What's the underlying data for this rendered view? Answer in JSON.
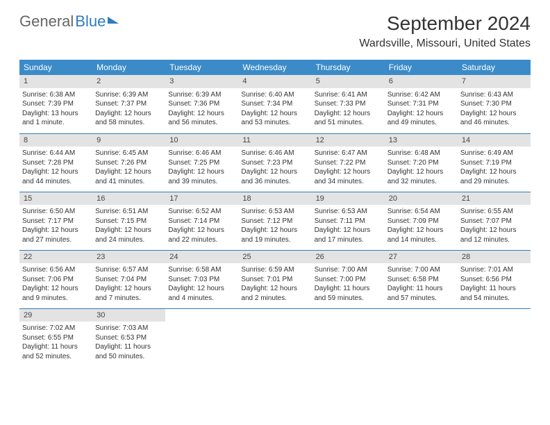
{
  "logo": {
    "part1": "General",
    "part2": "Blue"
  },
  "title": "September 2024",
  "location": "Wardsville, Missouri, United States",
  "header_bg": "#3b8bc8",
  "border_color": "#2f7bbf",
  "daynum_bg": "#e3e3e3",
  "weekdays": [
    "Sunday",
    "Monday",
    "Tuesday",
    "Wednesday",
    "Thursday",
    "Friday",
    "Saturday"
  ],
  "weeks": [
    [
      {
        "n": "1",
        "sr": "Sunrise: 6:38 AM",
        "ss": "Sunset: 7:39 PM",
        "d1": "Daylight: 13 hours",
        "d2": "and 1 minute."
      },
      {
        "n": "2",
        "sr": "Sunrise: 6:39 AM",
        "ss": "Sunset: 7:37 PM",
        "d1": "Daylight: 12 hours",
        "d2": "and 58 minutes."
      },
      {
        "n": "3",
        "sr": "Sunrise: 6:39 AM",
        "ss": "Sunset: 7:36 PM",
        "d1": "Daylight: 12 hours",
        "d2": "and 56 minutes."
      },
      {
        "n": "4",
        "sr": "Sunrise: 6:40 AM",
        "ss": "Sunset: 7:34 PM",
        "d1": "Daylight: 12 hours",
        "d2": "and 53 minutes."
      },
      {
        "n": "5",
        "sr": "Sunrise: 6:41 AM",
        "ss": "Sunset: 7:33 PM",
        "d1": "Daylight: 12 hours",
        "d2": "and 51 minutes."
      },
      {
        "n": "6",
        "sr": "Sunrise: 6:42 AM",
        "ss": "Sunset: 7:31 PM",
        "d1": "Daylight: 12 hours",
        "d2": "and 49 minutes."
      },
      {
        "n": "7",
        "sr": "Sunrise: 6:43 AM",
        "ss": "Sunset: 7:30 PM",
        "d1": "Daylight: 12 hours",
        "d2": "and 46 minutes."
      }
    ],
    [
      {
        "n": "8",
        "sr": "Sunrise: 6:44 AM",
        "ss": "Sunset: 7:28 PM",
        "d1": "Daylight: 12 hours",
        "d2": "and 44 minutes."
      },
      {
        "n": "9",
        "sr": "Sunrise: 6:45 AM",
        "ss": "Sunset: 7:26 PM",
        "d1": "Daylight: 12 hours",
        "d2": "and 41 minutes."
      },
      {
        "n": "10",
        "sr": "Sunrise: 6:46 AM",
        "ss": "Sunset: 7:25 PM",
        "d1": "Daylight: 12 hours",
        "d2": "and 39 minutes."
      },
      {
        "n": "11",
        "sr": "Sunrise: 6:46 AM",
        "ss": "Sunset: 7:23 PM",
        "d1": "Daylight: 12 hours",
        "d2": "and 36 minutes."
      },
      {
        "n": "12",
        "sr": "Sunrise: 6:47 AM",
        "ss": "Sunset: 7:22 PM",
        "d1": "Daylight: 12 hours",
        "d2": "and 34 minutes."
      },
      {
        "n": "13",
        "sr": "Sunrise: 6:48 AM",
        "ss": "Sunset: 7:20 PM",
        "d1": "Daylight: 12 hours",
        "d2": "and 32 minutes."
      },
      {
        "n": "14",
        "sr": "Sunrise: 6:49 AM",
        "ss": "Sunset: 7:19 PM",
        "d1": "Daylight: 12 hours",
        "d2": "and 29 minutes."
      }
    ],
    [
      {
        "n": "15",
        "sr": "Sunrise: 6:50 AM",
        "ss": "Sunset: 7:17 PM",
        "d1": "Daylight: 12 hours",
        "d2": "and 27 minutes."
      },
      {
        "n": "16",
        "sr": "Sunrise: 6:51 AM",
        "ss": "Sunset: 7:15 PM",
        "d1": "Daylight: 12 hours",
        "d2": "and 24 minutes."
      },
      {
        "n": "17",
        "sr": "Sunrise: 6:52 AM",
        "ss": "Sunset: 7:14 PM",
        "d1": "Daylight: 12 hours",
        "d2": "and 22 minutes."
      },
      {
        "n": "18",
        "sr": "Sunrise: 6:53 AM",
        "ss": "Sunset: 7:12 PM",
        "d1": "Daylight: 12 hours",
        "d2": "and 19 minutes."
      },
      {
        "n": "19",
        "sr": "Sunrise: 6:53 AM",
        "ss": "Sunset: 7:11 PM",
        "d1": "Daylight: 12 hours",
        "d2": "and 17 minutes."
      },
      {
        "n": "20",
        "sr": "Sunrise: 6:54 AM",
        "ss": "Sunset: 7:09 PM",
        "d1": "Daylight: 12 hours",
        "d2": "and 14 minutes."
      },
      {
        "n": "21",
        "sr": "Sunrise: 6:55 AM",
        "ss": "Sunset: 7:07 PM",
        "d1": "Daylight: 12 hours",
        "d2": "and 12 minutes."
      }
    ],
    [
      {
        "n": "22",
        "sr": "Sunrise: 6:56 AM",
        "ss": "Sunset: 7:06 PM",
        "d1": "Daylight: 12 hours",
        "d2": "and 9 minutes."
      },
      {
        "n": "23",
        "sr": "Sunrise: 6:57 AM",
        "ss": "Sunset: 7:04 PM",
        "d1": "Daylight: 12 hours",
        "d2": "and 7 minutes."
      },
      {
        "n": "24",
        "sr": "Sunrise: 6:58 AM",
        "ss": "Sunset: 7:03 PM",
        "d1": "Daylight: 12 hours",
        "d2": "and 4 minutes."
      },
      {
        "n": "25",
        "sr": "Sunrise: 6:59 AM",
        "ss": "Sunset: 7:01 PM",
        "d1": "Daylight: 12 hours",
        "d2": "and 2 minutes."
      },
      {
        "n": "26",
        "sr": "Sunrise: 7:00 AM",
        "ss": "Sunset: 7:00 PM",
        "d1": "Daylight: 11 hours",
        "d2": "and 59 minutes."
      },
      {
        "n": "27",
        "sr": "Sunrise: 7:00 AM",
        "ss": "Sunset: 6:58 PM",
        "d1": "Daylight: 11 hours",
        "d2": "and 57 minutes."
      },
      {
        "n": "28",
        "sr": "Sunrise: 7:01 AM",
        "ss": "Sunset: 6:56 PM",
        "d1": "Daylight: 11 hours",
        "d2": "and 54 minutes."
      }
    ],
    [
      {
        "n": "29",
        "sr": "Sunrise: 7:02 AM",
        "ss": "Sunset: 6:55 PM",
        "d1": "Daylight: 11 hours",
        "d2": "and 52 minutes."
      },
      {
        "n": "30",
        "sr": "Sunrise: 7:03 AM",
        "ss": "Sunset: 6:53 PM",
        "d1": "Daylight: 11 hours",
        "d2": "and 50 minutes."
      },
      null,
      null,
      null,
      null,
      null
    ]
  ]
}
